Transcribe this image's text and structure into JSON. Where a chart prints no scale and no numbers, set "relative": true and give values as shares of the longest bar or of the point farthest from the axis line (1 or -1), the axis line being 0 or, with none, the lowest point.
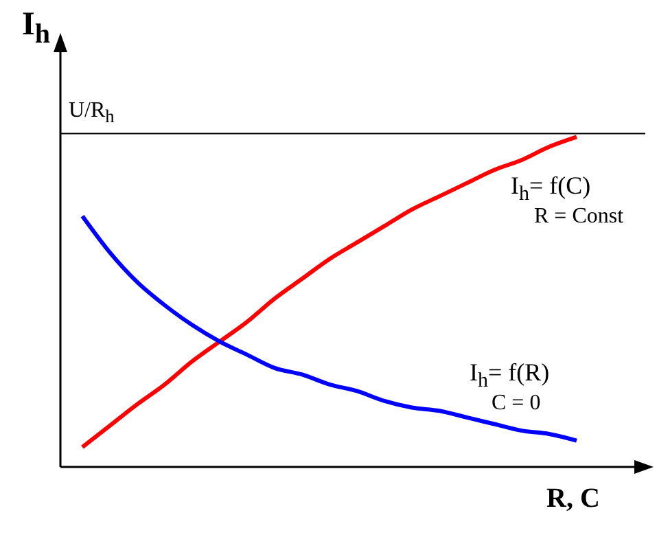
{
  "chart_data": {
    "type": "line",
    "relative": true,
    "xlabel": "R, C",
    "ylabel": "I$_{h}$",
    "categories": [
      null,
      null,
      null,
      null,
      null,
      null,
      null,
      null,
      null,
      null,
      null,
      null,
      null,
      null,
      null,
      null,
      null,
      null,
      null
    ],
    "series": [
      {
        "name": "I$_{h}$= f(C)",
        "color": "#ff0000",
        "values": [
          0.06,
          0.125,
          0.19,
          0.25,
          0.32,
          0.38,
          0.44,
          0.51,
          0.57,
          0.63,
          0.68,
          0.73,
          0.78,
          0.82,
          0.86,
          0.9,
          0.93,
          0.97,
          1.0
        ]
      },
      {
        "name": "I$_{h}$= f(R)",
        "color": "#0000ff",
        "values": [
          0.76,
          0.65,
          0.56,
          0.49,
          0.43,
          0.38,
          0.34,
          0.3,
          0.28,
          0.25,
          0.23,
          0.2,
          0.18,
          0.17,
          0.15,
          0.13,
          0.11,
          0.1,
          0.08
        ]
      }
    ],
    "ref_lines": [
      {
        "axis": "y",
        "value": 1.01,
        "label": "U/R$_{h}$",
        "color": "#000000"
      }
    ],
    "annotations": [
      "R = Const",
      "C = 0"
    ]
  }
}
